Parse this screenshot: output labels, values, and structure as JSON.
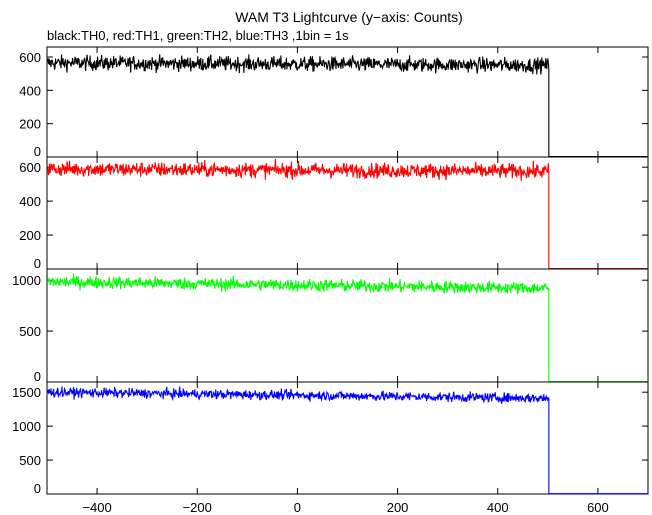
{
  "chart_data": {
    "type": "line",
    "title": "WAM T3 Lightcurve (y−axis: Counts)",
    "subtitle": "black:TH0, red:TH1, green:TH2, blue:TH3 ,1bin = 1s",
    "xlabel": "",
    "ylabel": "",
    "xlim": [
      -500,
      700
    ],
    "x_ticks": [
      -400,
      -200,
      0,
      200,
      400,
      600
    ],
    "x_tick_labels": [
      "−400",
      "−200",
      "0",
      "200",
      "400",
      "600"
    ],
    "grid": false,
    "panels": [
      {
        "series": "TH0",
        "color": "#000000",
        "ylim": [
          0,
          660
        ],
        "y_ticks": [
          0,
          200,
          400,
          600
        ],
        "y_tick_labels": [
          "0",
          "200",
          "400",
          "600"
        ],
        "level": 565,
        "end_level": 550,
        "noise": 22,
        "cutoff_x": 502,
        "after_level": 3
      },
      {
        "series": "TH1",
        "color": "#ff0000",
        "ylim": [
          0,
          660
        ],
        "y_ticks": [
          0,
          200,
          400,
          600
        ],
        "y_tick_labels": [
          "0",
          "200",
          "400",
          "600"
        ],
        "level": 590,
        "end_level": 575,
        "noise": 22,
        "cutoff_x": 502,
        "after_level": 3
      },
      {
        "series": "TH2",
        "color": "#00ff00",
        "ylim": [
          0,
          1110
        ],
        "y_ticks": [
          0,
          500,
          1000
        ],
        "y_tick_labels": [
          "0",
          "500",
          "1000"
        ],
        "level": 985,
        "end_level": 920,
        "noise": 30,
        "cutoff_x": 502,
        "after_level": 4
      },
      {
        "series": "TH3",
        "color": "#0000ff",
        "ylim": [
          0,
          1650
        ],
        "y_ticks": [
          0,
          500,
          1000,
          1500
        ],
        "y_tick_labels": [
          "0",
          "500",
          "1000",
          "1500"
        ],
        "level": 1500,
        "end_level": 1410,
        "noise": 35,
        "cutoff_x": 502,
        "after_level": 5
      }
    ]
  }
}
